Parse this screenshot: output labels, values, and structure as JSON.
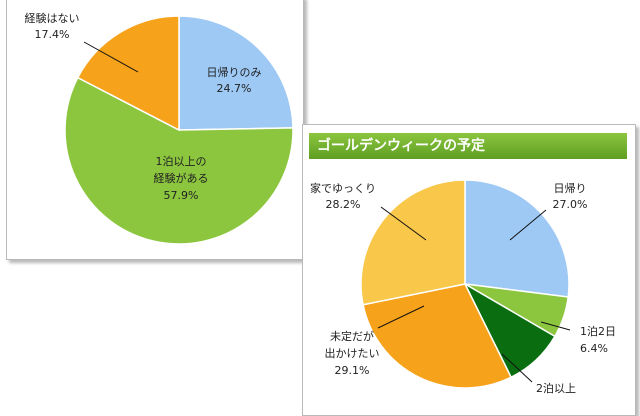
{
  "chart_data": [
    {
      "type": "pie",
      "title": "",
      "slices": [
        {
          "label": "日帰りのみ",
          "percent": "24.7%",
          "value": 24.7,
          "color": "#9ec9f5"
        },
        {
          "label": "1泊以上の経験がある",
          "percent": "57.9%",
          "value": 57.9,
          "color": "#8cc63f"
        },
        {
          "label": "経験はない",
          "percent": "17.4%",
          "value": 17.4,
          "color": "#f7a21b"
        }
      ]
    },
    {
      "type": "pie",
      "title": "ゴールデンウィークの予定",
      "slices": [
        {
          "label": "日帰り",
          "percent": "27.0%",
          "value": 27.0,
          "color": "#9ec9f5"
        },
        {
          "label": "1泊2日",
          "percent": "6.4%",
          "value": 6.4,
          "color": "#8cc63f"
        },
        {
          "label": "2泊以上",
          "percent": "",
          "value": 9.3,
          "color": "#0a6e10"
        },
        {
          "label": "未定だが出かけたい",
          "percent": "29.1%",
          "value": 29.1,
          "color": "#f7a21b"
        },
        {
          "label": "家でゆっくり",
          "percent": "28.2%",
          "value": 28.2,
          "color": "#f9c84a"
        }
      ]
    }
  ]
}
